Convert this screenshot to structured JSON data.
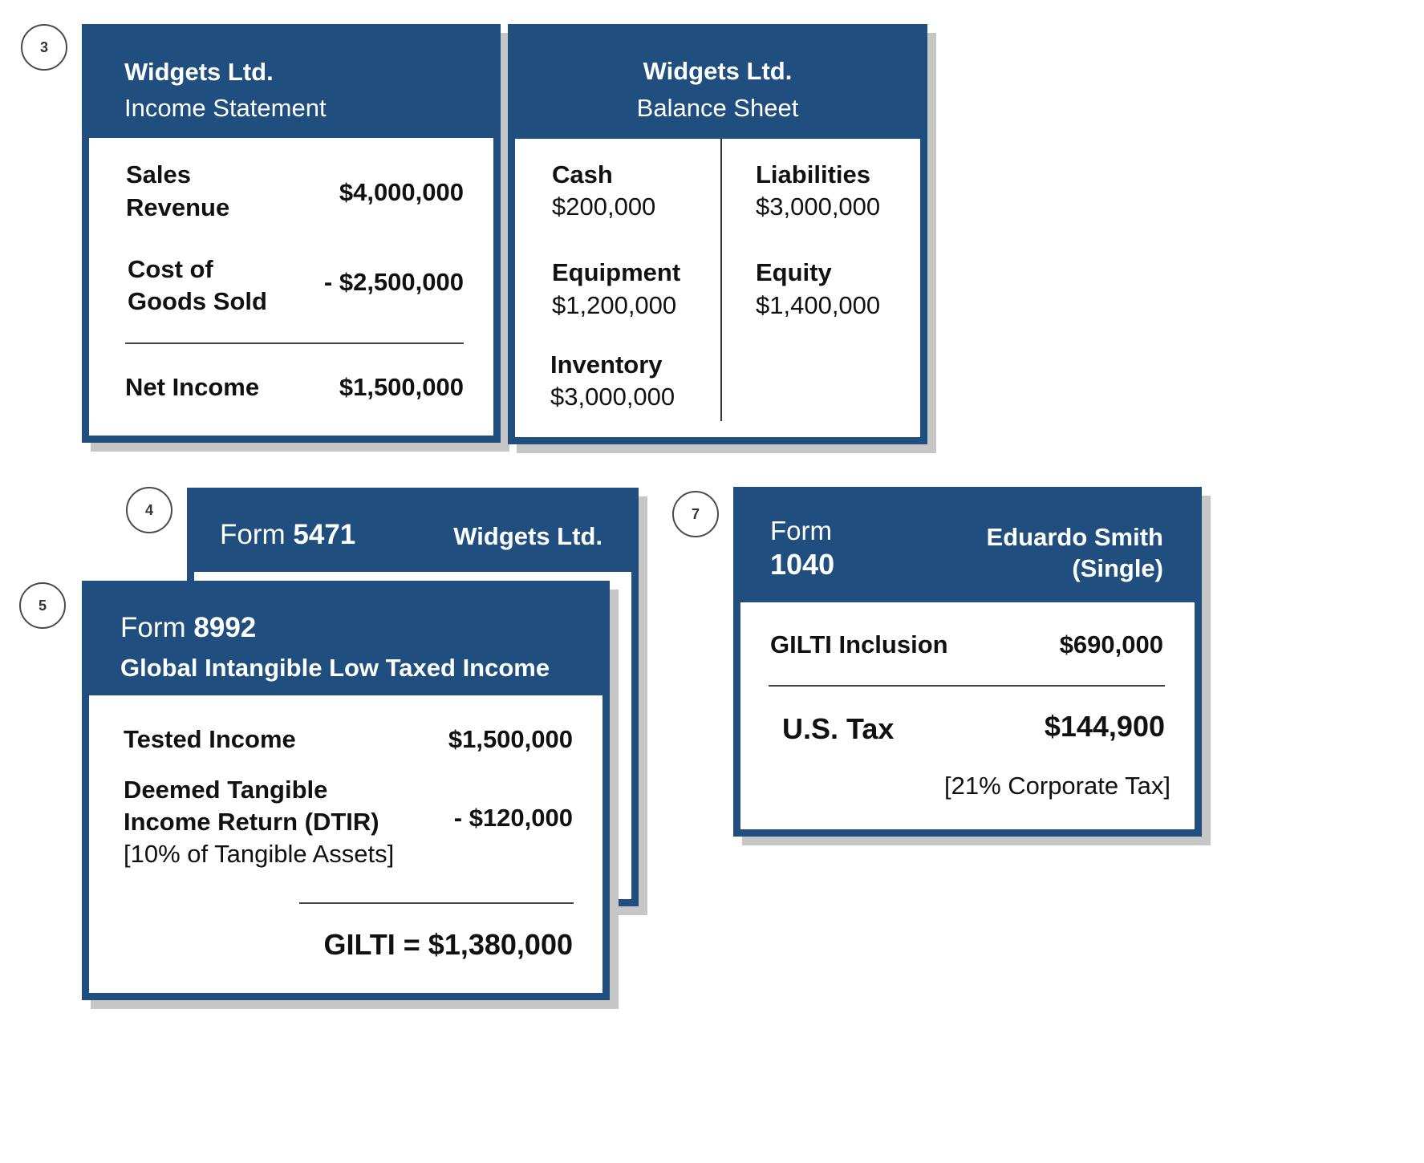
{
  "steps": [
    "3",
    "4",
    "5",
    "7"
  ],
  "colors": {
    "header": "#1f4e7f",
    "shadow": "#c6c6c6",
    "body": "#ffffff"
  },
  "income_statement": {
    "company": "Widgets Ltd.",
    "title": "Income Statement",
    "sales_label_1": "Sales",
    "sales_label_2": "Revenue",
    "sales_value": "$4,000,000",
    "cogs_label_1": "Cost of",
    "cogs_label_2": "Goods Sold",
    "cogs_value": "- $2,500,000",
    "net_label": "Net Income",
    "net_value": "$1,500,000"
  },
  "balance_sheet": {
    "company": "Widgets Ltd.",
    "title": "Balance Sheet",
    "cash_label": "Cash",
    "cash_value": "$200,000",
    "equipment_label": "Equipment",
    "equipment_value": "$1,200,000",
    "inventory_label": "Inventory",
    "inventory_value": "$3,000,000",
    "liabilities_label": "Liabilities",
    "liabilities_value": "$3,000,000",
    "equity_label": "Equity",
    "equity_value": "$1,400,000"
  },
  "form_5471": {
    "form_word": "Form",
    "form_number": "5471",
    "company": "Widgets Ltd."
  },
  "form_8992": {
    "form_word": "Form",
    "form_number": "8992",
    "subtitle": "Global Intangible Low Taxed Income",
    "tested_label": "Tested Income",
    "tested_value": "$1,500,000",
    "dtir_label_1": "Deemed Tangible",
    "dtir_label_2": "Income Return (DTIR)",
    "dtir_note": "[10% of Tangible Assets]",
    "dtir_value": "- $120,000",
    "gilti_total": "GILTI = $1,380,000"
  },
  "form_1040": {
    "form_word": "Form",
    "form_number": "1040",
    "name": "Eduardo Smith",
    "status": "(Single)",
    "inclusion_label": "GILTI Inclusion",
    "inclusion_value": "$690,000",
    "tax_label": "U.S. Tax",
    "tax_value": "$144,900",
    "tax_note": "[21% Corporate Tax]"
  }
}
